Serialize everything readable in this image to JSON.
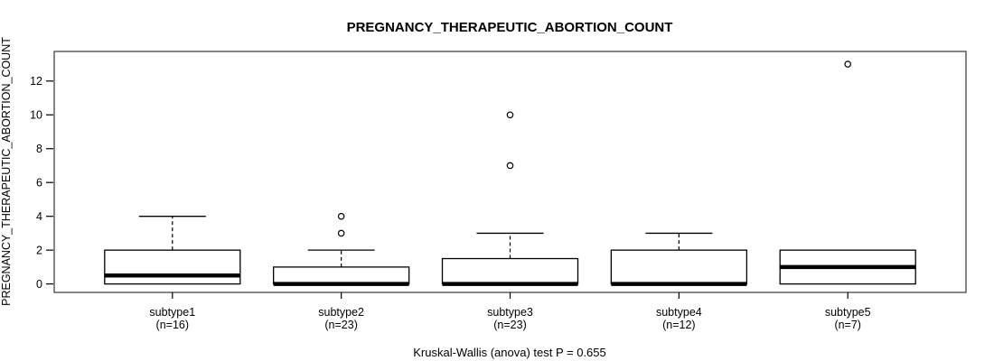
{
  "chart_data": {
    "type": "boxplot",
    "title": "PREGNANCY_THERAPEUTIC_ABORTION_COUNT",
    "ylabel": "PREGNANCY_THERAPEUTIC_ABORTION_COUNT",
    "xlabel": "",
    "footnote": "Kruskal-Wallis (anova) test P = 0.655",
    "yticks": [
      0,
      2,
      4,
      6,
      8,
      10,
      12
    ],
    "ylim": [
      -0.5,
      13.75
    ],
    "grid": false,
    "legend": "none",
    "colors": {
      "box_fill": "#ffffff",
      "stroke": "#000000",
      "frame": "#444444"
    },
    "groups": [
      {
        "label": "subtype1",
        "n_label": "(n=16)",
        "n": 16,
        "whisker_low": 0,
        "q1": 0,
        "median": 0.5,
        "q3": 2,
        "whisker_high": 4,
        "outliers": []
      },
      {
        "label": "subtype2",
        "n_label": "(n=23)",
        "n": 23,
        "whisker_low": 0,
        "q1": 0,
        "median": 0,
        "q3": 1,
        "whisker_high": 2,
        "outliers": [
          3,
          4
        ]
      },
      {
        "label": "subtype3",
        "n_label": "(n=23)",
        "n": 23,
        "whisker_low": 0,
        "q1": 0,
        "median": 0,
        "q3": 1.5,
        "whisker_high": 3,
        "outliers": [
          7,
          10
        ]
      },
      {
        "label": "subtype4",
        "n_label": "(n=12)",
        "n": 12,
        "whisker_low": 0,
        "q1": 0,
        "median": 0,
        "q3": 2,
        "whisker_high": 3,
        "outliers": []
      },
      {
        "label": "subtype5",
        "n_label": "(n=7)",
        "n": 7,
        "whisker_low": 0,
        "q1": 0,
        "median": 1,
        "q3": 2,
        "whisker_high": 2,
        "outliers": [
          13
        ]
      }
    ]
  }
}
